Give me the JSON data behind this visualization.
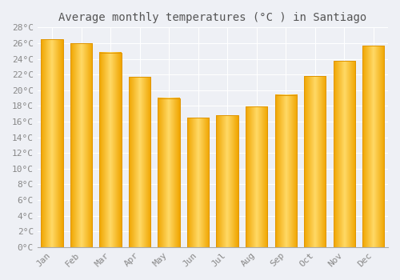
{
  "months": [
    "Jan",
    "Feb",
    "Mar",
    "Apr",
    "May",
    "Jun",
    "Jul",
    "Aug",
    "Sep",
    "Oct",
    "Nov",
    "Dec"
  ],
  "values": [
    26.5,
    26.0,
    24.8,
    21.7,
    19.0,
    16.5,
    16.8,
    17.9,
    19.4,
    21.8,
    23.7,
    25.7
  ],
  "bar_color_center": "#FFD966",
  "bar_color_edge": "#F0A500",
  "title": "Average monthly temperatures (°C ) in Santiago",
  "ylim": [
    0,
    28
  ],
  "ytick_step": 2,
  "background_color": "#EEF0F5",
  "plot_bg_color": "#EEF0F5",
  "grid_color": "#ffffff",
  "title_fontsize": 10,
  "tick_fontsize": 8,
  "font_family": "monospace",
  "tick_color": "#888888",
  "title_color": "#555555"
}
